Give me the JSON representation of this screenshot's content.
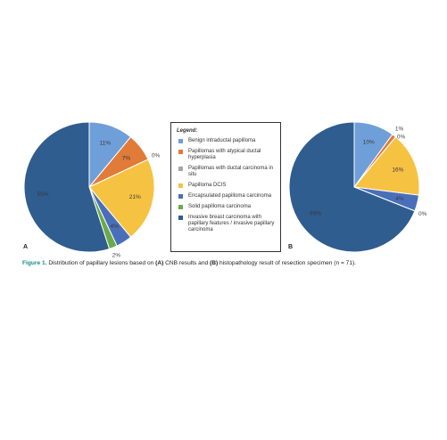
{
  "chart_data": {
    "type": "pie",
    "legend_title": "Legend:",
    "categories": [
      "Benign intraductal papilloma",
      "Papillomas with atypical ductal hyperplasia",
      "Papillomas with ductal carcinoma in situ",
      "Papilloma DCIS",
      "Encapsulated papilloma carcinoma",
      "Solid papilloma carcinoma",
      "Invasive breast carcinoma with papillary features / invasive papillary carcinoma"
    ],
    "colors": [
      "#6f9fd8",
      "#e07b39",
      "#a5a5a5",
      "#f6c242",
      "#4a6fba",
      "#6aaa4a",
      "#2f5d8f"
    ],
    "series": [
      {
        "name": "A",
        "values": [
          11,
          7,
          0,
          21,
          4,
          2,
          55
        ],
        "value_labels": [
          "11%",
          "7%",
          "0%",
          "21%",
          "4%",
          "2%",
          "55%"
        ]
      },
      {
        "name": "B",
        "values": [
          10,
          1,
          0,
          16,
          4,
          0,
          69
        ],
        "value_labels": [
          "10%",
          "1%",
          "0%",
          "16%",
          "4%",
          "0%",
          "69%"
        ]
      }
    ],
    "figure_label": "Figure 1.",
    "caption_parts": [
      " Distribution of papillary lesions based on ",
      "(A)",
      " CNB results and ",
      "(B)",
      " histopathology result of resection specimen (n = 71)."
    ]
  }
}
